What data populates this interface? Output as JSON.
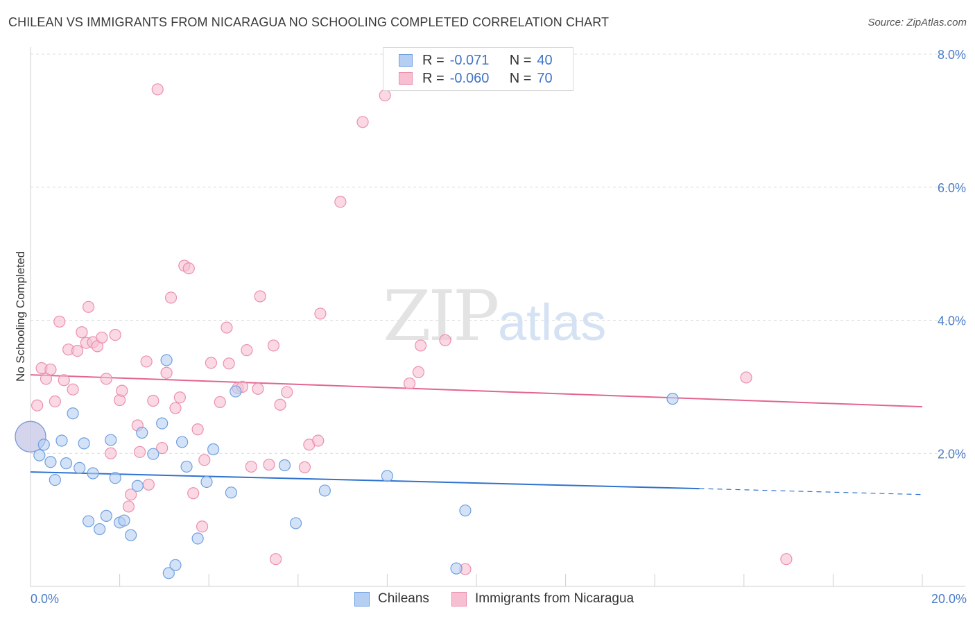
{
  "title": "CHILEAN VS IMMIGRANTS FROM NICARAGUA NO SCHOOLING COMPLETED CORRELATION CHART",
  "source": "Source: ZipAtlas.com",
  "watermark": {
    "zip": "ZIP",
    "atlas": "atlas"
  },
  "colors": {
    "blue_fill": "#b5cff2",
    "blue_stroke": "#6f9fe0",
    "blue_line": "#2f72cf",
    "pink_fill": "#f7c0d2",
    "pink_stroke": "#ec8fad",
    "pink_line": "#e3658f",
    "grid": "#dcdcdc",
    "tick_text": "#4a7cc7"
  },
  "legend": {
    "rows": [
      {
        "r_label": "R =",
        "r_value": "-0.071",
        "n_label": "N =",
        "n_value": "40"
      },
      {
        "r_label": "R =",
        "r_value": "-0.060",
        "n_label": "N =",
        "n_value": "70"
      }
    ]
  },
  "bottom_legend": {
    "series1": "Chileans",
    "series2": "Immigrants from Nicaragua"
  },
  "chart_data": {
    "type": "scatter",
    "title": "CHILEAN VS IMMIGRANTS FROM NICARAGUA NO SCHOOLING COMPLETED CORRELATION CHART",
    "xlabel": "",
    "ylabel": "No Schooling Completed",
    "xlim": [
      0,
      20
    ],
    "ylim": [
      0,
      8.0
    ],
    "x_tick_labels": [
      "0.0%",
      "20.0%"
    ],
    "y_ticks": [
      2.0,
      4.0,
      6.0,
      8.0
    ],
    "y_tick_labels": [
      "2.0%",
      "4.0%",
      "6.0%",
      "8.0%"
    ],
    "grid": true,
    "legend_position": "top-center",
    "series": [
      {
        "name": "Chileans",
        "color": "#6f9fe0",
        "trend": {
          "x0": 0,
          "y0": 1.72,
          "x1": 15.0,
          "y1": 1.47,
          "dashed_to_x": 20.0,
          "dashed_to_y": 1.38
        },
        "points": [
          {
            "x": 0.0,
            "y": 2.25,
            "big": true
          },
          {
            "x": 0.2,
            "y": 1.97
          },
          {
            "x": 0.3,
            "y": 2.13
          },
          {
            "x": 0.45,
            "y": 1.87
          },
          {
            "x": 0.55,
            "y": 1.6
          },
          {
            "x": 0.7,
            "y": 2.19
          },
          {
            "x": 0.8,
            "y": 1.85
          },
          {
            "x": 0.95,
            "y": 2.6
          },
          {
            "x": 1.1,
            "y": 1.78
          },
          {
            "x": 1.2,
            "y": 2.15
          },
          {
            "x": 1.3,
            "y": 0.98
          },
          {
            "x": 1.4,
            "y": 1.7
          },
          {
            "x": 1.55,
            "y": 0.86
          },
          {
            "x": 1.7,
            "y": 1.06
          },
          {
            "x": 1.8,
            "y": 2.2
          },
          {
            "x": 1.9,
            "y": 1.63
          },
          {
            "x": 2.0,
            "y": 0.96
          },
          {
            "x": 2.1,
            "y": 0.99
          },
          {
            "x": 2.25,
            "y": 0.77
          },
          {
            "x": 2.4,
            "y": 1.51
          },
          {
            "x": 2.5,
            "y": 2.31
          },
          {
            "x": 2.75,
            "y": 1.99
          },
          {
            "x": 2.95,
            "y": 2.45
          },
          {
            "x": 3.05,
            "y": 3.4
          },
          {
            "x": 3.1,
            "y": 0.2
          },
          {
            "x": 3.25,
            "y": 0.32
          },
          {
            "x": 3.4,
            "y": 2.17
          },
          {
            "x": 3.5,
            "y": 1.8
          },
          {
            "x": 3.75,
            "y": 0.72
          },
          {
            "x": 3.95,
            "y": 1.57
          },
          {
            "x": 4.1,
            "y": 2.06
          },
          {
            "x": 4.5,
            "y": 1.41
          },
          {
            "x": 4.6,
            "y": 2.93
          },
          {
            "x": 5.7,
            "y": 1.82
          },
          {
            "x": 5.95,
            "y": 0.95
          },
          {
            "x": 6.6,
            "y": 1.44
          },
          {
            "x": 8.0,
            "y": 1.66
          },
          {
            "x": 9.55,
            "y": 0.27
          },
          {
            "x": 9.75,
            "y": 1.14
          },
          {
            "x": 14.4,
            "y": 2.82
          }
        ]
      },
      {
        "name": "Immigrants from Nicaragua",
        "color": "#ec8fad",
        "trend": {
          "x0": 0,
          "y0": 3.18,
          "x1": 20.0,
          "y1": 2.7
        },
        "points": [
          {
            "x": 0.0,
            "y": 2.25,
            "big": true
          },
          {
            "x": 0.15,
            "y": 2.72
          },
          {
            "x": 0.25,
            "y": 3.28
          },
          {
            "x": 0.35,
            "y": 3.12
          },
          {
            "x": 0.45,
            "y": 3.26
          },
          {
            "x": 0.55,
            "y": 2.78
          },
          {
            "x": 0.65,
            "y": 3.98
          },
          {
            "x": 0.75,
            "y": 3.1
          },
          {
            "x": 0.85,
            "y": 3.56
          },
          {
            "x": 0.95,
            "y": 2.96
          },
          {
            "x": 1.05,
            "y": 3.54
          },
          {
            "x": 1.15,
            "y": 3.82
          },
          {
            "x": 1.25,
            "y": 3.66
          },
          {
            "x": 1.3,
            "y": 4.2
          },
          {
            "x": 1.4,
            "y": 3.67
          },
          {
            "x": 1.5,
            "y": 3.61
          },
          {
            "x": 1.6,
            "y": 3.74
          },
          {
            "x": 1.7,
            "y": 3.12
          },
          {
            "x": 1.8,
            "y": 2.0
          },
          {
            "x": 1.9,
            "y": 3.78
          },
          {
            "x": 2.0,
            "y": 2.8
          },
          {
            "x": 2.05,
            "y": 2.94
          },
          {
            "x": 2.2,
            "y": 1.2
          },
          {
            "x": 2.25,
            "y": 1.38
          },
          {
            "x": 2.4,
            "y": 2.42
          },
          {
            "x": 2.45,
            "y": 2.02
          },
          {
            "x": 2.6,
            "y": 3.38
          },
          {
            "x": 2.65,
            "y": 1.53
          },
          {
            "x": 2.75,
            "y": 2.79
          },
          {
            "x": 2.85,
            "y": 7.47
          },
          {
            "x": 2.95,
            "y": 2.08
          },
          {
            "x": 3.05,
            "y": 3.21
          },
          {
            "x": 3.15,
            "y": 4.34
          },
          {
            "x": 3.25,
            "y": 2.68
          },
          {
            "x": 3.35,
            "y": 2.84
          },
          {
            "x": 3.45,
            "y": 4.82
          },
          {
            "x": 3.55,
            "y": 4.78
          },
          {
            "x": 3.65,
            "y": 1.4
          },
          {
            "x": 3.75,
            "y": 2.36
          },
          {
            "x": 3.85,
            "y": 0.9
          },
          {
            "x": 3.9,
            "y": 1.9
          },
          {
            "x": 4.05,
            "y": 3.36
          },
          {
            "x": 4.25,
            "y": 2.77
          },
          {
            "x": 4.4,
            "y": 3.89
          },
          {
            "x": 4.45,
            "y": 3.35
          },
          {
            "x": 4.65,
            "y": 2.98
          },
          {
            "x": 4.75,
            "y": 3.0
          },
          {
            "x": 4.85,
            "y": 3.55
          },
          {
            "x": 4.95,
            "y": 1.8
          },
          {
            "x": 5.1,
            "y": 2.97
          },
          {
            "x": 5.15,
            "y": 4.36
          },
          {
            "x": 5.35,
            "y": 1.83
          },
          {
            "x": 5.45,
            "y": 3.62
          },
          {
            "x": 5.5,
            "y": 0.41
          },
          {
            "x": 5.6,
            "y": 2.73
          },
          {
            "x": 5.75,
            "y": 2.92
          },
          {
            "x": 6.15,
            "y": 1.79
          },
          {
            "x": 6.25,
            "y": 2.13
          },
          {
            "x": 6.45,
            "y": 2.19
          },
          {
            "x": 6.5,
            "y": 4.1
          },
          {
            "x": 6.95,
            "y": 5.78
          },
          {
            "x": 7.45,
            "y": 6.98
          },
          {
            "x": 7.95,
            "y": 7.38
          },
          {
            "x": 8.5,
            "y": 3.05
          },
          {
            "x": 8.7,
            "y": 3.22
          },
          {
            "x": 8.75,
            "y": 3.62
          },
          {
            "x": 9.3,
            "y": 3.7
          },
          {
            "x": 9.75,
            "y": 0.26
          },
          {
            "x": 16.05,
            "y": 3.14
          },
          {
            "x": 16.95,
            "y": 0.41
          }
        ]
      }
    ]
  }
}
